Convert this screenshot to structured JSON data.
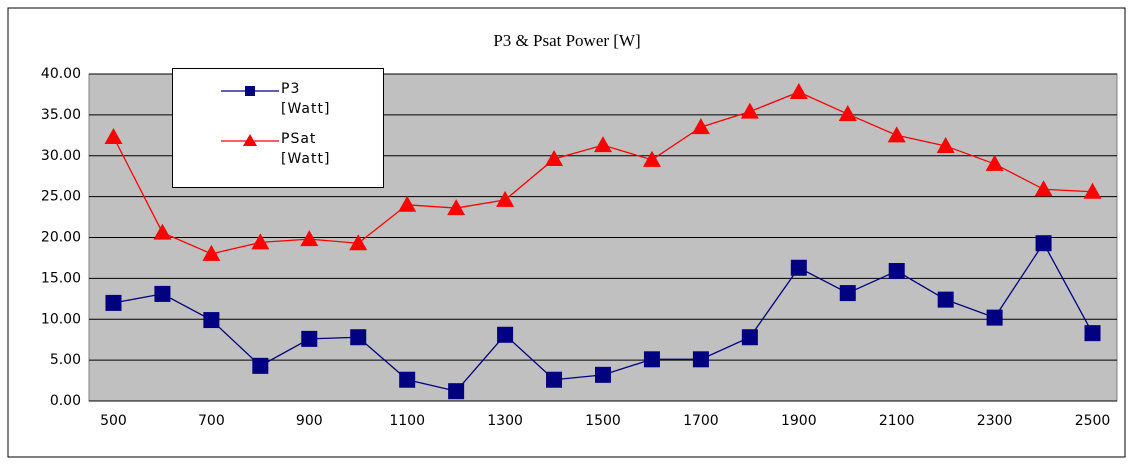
{
  "chart_data": {
    "type": "line",
    "title": "P3 & Psat Power [W]",
    "categories": [
      "500",
      null,
      "700",
      null,
      "900",
      null,
      "1100",
      null,
      "1300",
      null,
      "1500",
      null,
      "1700",
      null,
      "1900",
      null,
      "2100",
      null,
      "2300",
      null,
      "2500"
    ],
    "series": [
      {
        "name": "P3 [Watt]",
        "color": "#000080",
        "marker": "square",
        "values": [
          12.0,
          13.1,
          9.9,
          4.3,
          7.6,
          7.8,
          2.6,
          1.2,
          8.1,
          2.6,
          3.2,
          5.1,
          5.1,
          7.8,
          16.3,
          13.2,
          15.9,
          12.4,
          10.2,
          19.3,
          8.3
        ]
      },
      {
        "name": "PSat [Watt]",
        "color": "#ff0000",
        "marker": "triangle",
        "values": [
          32.3,
          20.6,
          18.0,
          19.4,
          19.8,
          19.3,
          24.0,
          23.6,
          24.6,
          29.6,
          31.3,
          29.5,
          33.5,
          35.4,
          37.8,
          35.1,
          32.5,
          31.2,
          29.0,
          25.9,
          25.6
        ]
      }
    ],
    "ylim": [
      0,
      40
    ],
    "yticks": [
      {
        "value": 0,
        "label": "0.00"
      },
      {
        "value": 5,
        "label": "5.00"
      },
      {
        "value": 10,
        "label": "10.00"
      },
      {
        "value": 15,
        "label": "15.00"
      },
      {
        "value": 20,
        "label": "20.00"
      },
      {
        "value": 25,
        "label": "25.00"
      },
      {
        "value": 30,
        "label": "30.00"
      },
      {
        "value": 35,
        "label": "35.00"
      },
      {
        "value": 40,
        "label": "40.00"
      }
    ],
    "grid": true,
    "legend": "top-left"
  }
}
